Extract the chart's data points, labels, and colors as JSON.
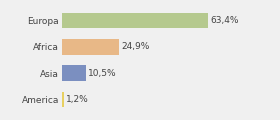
{
  "categories": [
    "Europa",
    "Africa",
    "Asia",
    "America"
  ],
  "values": [
    63.4,
    24.9,
    10.5,
    1.2
  ],
  "labels": [
    "63,4%",
    "24,9%",
    "10,5%",
    "1,2%"
  ],
  "colors": [
    "#b5c98e",
    "#e8b887",
    "#7b8fc0",
    "#e8d060"
  ],
  "xlim": [
    0,
    80
  ],
  "background_color": "#f0f0f0",
  "bar_height": 0.6,
  "label_fontsize": 6.5,
  "tick_fontsize": 6.5
}
